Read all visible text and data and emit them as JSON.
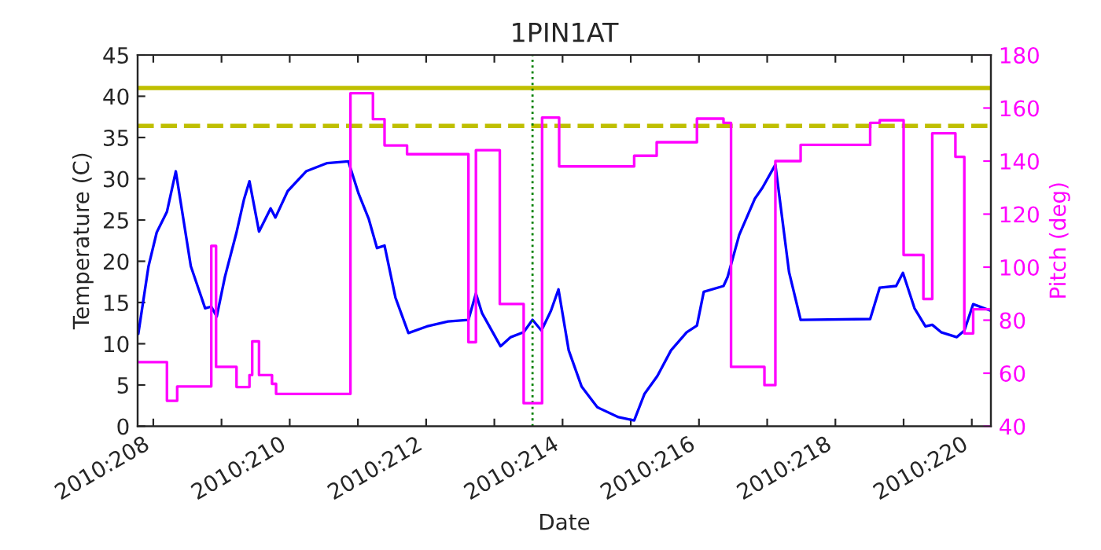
{
  "chart_data": {
    "type": "line",
    "title": "1PIN1AT",
    "xlabel": "Date",
    "ylabel": "Temperature (C)",
    "y2label": "Pitch (deg)",
    "xlim": [
      "2010-07-26T18:29",
      "2010-08-08T06:43"
    ],
    "xticks": [
      {
        "value": "2010-07-27",
        "label": "2010:208"
      },
      {
        "value": "2010-07-28",
        "label": null
      },
      {
        "value": "2010-07-29",
        "label": "2010:210"
      },
      {
        "value": "2010-07-30",
        "label": null
      },
      {
        "value": "2010-07-31",
        "label": "2010:212"
      },
      {
        "value": "2010-08-01",
        "label": null
      },
      {
        "value": "2010-08-02",
        "label": "2010:214"
      },
      {
        "value": "2010-08-03",
        "label": null
      },
      {
        "value": "2010-08-04",
        "label": "2010:216"
      },
      {
        "value": "2010-08-05",
        "label": null
      },
      {
        "value": "2010-08-06",
        "label": "2010:218"
      },
      {
        "value": "2010-08-07",
        "label": null
      },
      {
        "value": "2010-08-08",
        "label": "2010:220"
      }
    ],
    "ylim": [
      0,
      45
    ],
    "yticks": [
      0,
      5,
      10,
      15,
      20,
      25,
      30,
      35,
      40,
      45
    ],
    "y2lim": [
      40,
      180
    ],
    "y2ticks": [
      40,
      60,
      80,
      100,
      120,
      140,
      160,
      180
    ],
    "grid": false,
    "series": [
      {
        "color": "#0000ff",
        "x": [
          "2010-07-26T18:43",
          "2010-07-26T22:19",
          "2010-07-27T01:12",
          "2010-07-27T04:48",
          "2010-07-27T07:55",
          "2010-07-27T13:12",
          "2010-07-27T18:14",
          "2010-07-27T20:24",
          "2010-07-27T22:19",
          "2010-07-28T01:12",
          "2010-07-28T05:17",
          "2010-07-28T07:55",
          "2010-07-28T09:50",
          "2010-07-28T13:12",
          "2010-07-28T17:17",
          "2010-07-28T18:58",
          "2010-07-28T23:17",
          "2010-07-29T05:46",
          "2010-07-29T13:12",
          "2010-07-29T20:38",
          "2010-07-30T00:14",
          "2010-07-30T03:50",
          "2010-07-30T06:43",
          "2010-07-30T09:22",
          "2010-07-30T13:12",
          "2010-07-30T17:46",
          "2010-07-31T00:14",
          "2010-07-31T07:41",
          "2010-07-31T14:53",
          "2010-07-31T17:31",
          "2010-07-31T19:41",
          "2010-08-01T02:10",
          "2010-08-01T05:46",
          "2010-08-01T10:19",
          "2010-08-01T13:26",
          "2010-08-01T16:34",
          "2010-08-01T19:55",
          "2010-08-01T22:34",
          "2010-08-02T02:10",
          "2010-08-02T06:43",
          "2010-08-02T12:14",
          "2010-08-02T19:41",
          "2010-08-03T01:12",
          "2010-08-03T04:48",
          "2010-08-03T09:22",
          "2010-08-03T14:10",
          "2010-08-03T19:41",
          "2010-08-03T23:17",
          "2010-08-04T01:41",
          "2010-08-04T08:38",
          "2010-08-04T10:05",
          "2010-08-04T14:10",
          "2010-08-04T19:41",
          "2010-08-04T22:19",
          "2010-08-05T02:53",
          "2010-08-05T07:41",
          "2010-08-05T11:46",
          "2010-08-06T12:14",
          "2010-08-06T15:36",
          "2010-08-06T21:22",
          "2010-08-06T23:46",
          "2010-08-07T03:50",
          "2010-08-07T07:41",
          "2010-08-07T10:05",
          "2010-08-07T13:12",
          "2010-08-07T18:43",
          "2010-08-07T21:22",
          "2010-08-08T00:29",
          "2010-08-08T06:43"
        ],
        "values": [
          11.2,
          19.4,
          23.5,
          26,
          30.9,
          19.4,
          14.3,
          14.5,
          13.3,
          18.1,
          23.5,
          27.5,
          29.7,
          23.6,
          26.4,
          25.3,
          28.5,
          30.9,
          31.9,
          32.1,
          28.2,
          25.1,
          21.6,
          21.9,
          15.6,
          11.3,
          12.1,
          12.7,
          12.9,
          16.1,
          13.7,
          9.7,
          10.8,
          11.4,
          12.9,
          11.6,
          14,
          16.6,
          9.2,
          4.8,
          2.3,
          1.1,
          0.7,
          3.9,
          6.1,
          9.2,
          11.4,
          12.2,
          16.3,
          17,
          18.1,
          23.2,
          27.6,
          28.9,
          31.7,
          18.7,
          12.9,
          13,
          16.8,
          17,
          18.6,
          14.3,
          12.1,
          12.3,
          11.4,
          10.8,
          11.6,
          14.8,
          14
        ]
      },
      {
        "type": "step",
        "axis": "y2",
        "color": "#ff00ff",
        "x": [
          "2010-07-26T18:29",
          "2010-07-27T04:48",
          "2010-07-27T08:24",
          "2010-07-27T20:24",
          "2010-07-27T22:05",
          "2010-07-28T05:17",
          "2010-07-28T09:50",
          "2010-07-28T10:48",
          "2010-07-28T13:12",
          "2010-07-28T17:46",
          "2010-07-28T19:12",
          "2010-07-29T21:22",
          "2010-07-30T05:17",
          "2010-07-30T09:22",
          "2010-07-30T17:17",
          "2010-07-31T14:53",
          "2010-07-31T17:31",
          "2010-08-01T01:55",
          "2010-08-01T10:19",
          "2010-08-01T16:48",
          "2010-08-01T22:48",
          "2010-08-03T01:12",
          "2010-08-03T09:07",
          "2010-08-03T23:17",
          "2010-08-04T08:38",
          "2010-08-04T11:17",
          "2010-08-04T23:02",
          "2010-08-05T02:53",
          "2010-08-05T11:46",
          "2010-08-06T12:14",
          "2010-08-06T15:36",
          "2010-08-07T00:00",
          "2010-08-07T06:58",
          "2010-08-07T10:05",
          "2010-08-07T18:14",
          "2010-08-07T21:22",
          "2010-08-08T00:29",
          "2010-08-08T06:43"
        ],
        "values": [
          64.2,
          49.6,
          55,
          108,
          62.4,
          54.8,
          59.3,
          72,
          59.3,
          56,
          52.2,
          165.6,
          155.8,
          145.9,
          142.6,
          71.7,
          144.1,
          86.1,
          48.7,
          156.4,
          138,
          142,
          147.1,
          156,
          154.4,
          62.4,
          55.5,
          140,
          146.1,
          154.4,
          155.4,
          104.6,
          88,
          150.5,
          141.6,
          75,
          84.1,
          84.1
        ]
      }
    ],
    "ref_lines": [
      {
        "axis": "y",
        "value": 41,
        "color": "#bfbf00",
        "line_style": "solid"
      },
      {
        "axis": "y",
        "value": 36.4,
        "color": "#bfbf00",
        "line_style": "dashed"
      },
      {
        "axis": "x",
        "value": "2010-08-01T13:26",
        "color": "#008000",
        "line_style": "dotted"
      }
    ]
  }
}
